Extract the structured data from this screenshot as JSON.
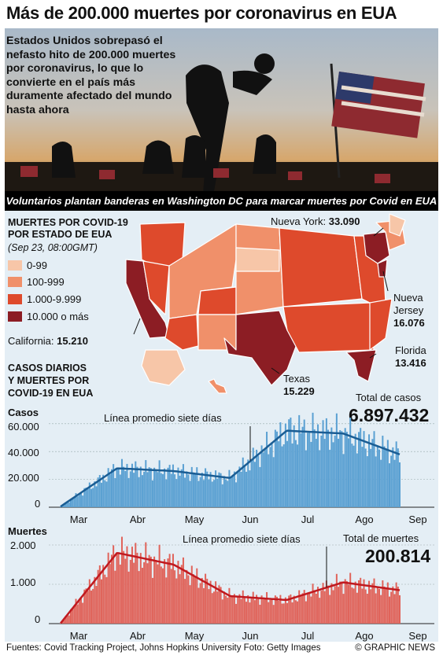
{
  "title": "Más de 200.000 muertes por coronavirus en EUA",
  "intro": "Estados Unidos sobrepasó el nefasto hito de 200.000 muertes por coronavirus, lo que lo convierte en el país más duramente afectado del mundo hasta ahora",
  "caption": "Voluntarios plantan banderas en Washington DC para marcar muertes por Covid en EUA",
  "map": {
    "title_l1": "Muertes por Covid-19",
    "title_l2": "por Estado de EUA",
    "date": "(Sep 23, 08:00GMT)",
    "legend": [
      {
        "label": "0-99",
        "color": "#f7c6a8"
      },
      {
        "label": "100-999",
        "color": "#f0906a"
      },
      {
        "label": "1.000-9.999",
        "color": "#de4a2c"
      },
      {
        "label": "10.000 o más",
        "color": "#8c1d24"
      }
    ],
    "ny_label": "Nueva York:",
    "ny_value": "33.090",
    "nj_l1": "Nueva",
    "nj_l2": "Jersey",
    "nj_value": "16.076",
    "ca_label": "California:",
    "ca_value": "15.210",
    "fl_label": "Florida",
    "fl_value": "13.416",
    "tx_label": "Texas",
    "tx_value": "15.229"
  },
  "section_title_l1": "Casos Diarios",
  "section_title_l2": "y Muertes por",
  "section_title_l3": "Covid-19 en EUA",
  "months": [
    "Mar",
    "Abr",
    "May",
    "Jun",
    "Jul",
    "Ago",
    "Sep"
  ],
  "cases": {
    "axis_title": "Casos",
    "ticks": [
      "60.000",
      "40.000",
      "20.000",
      "0"
    ],
    "avg_label": "Línea promedio siete días",
    "total_label": "Total de casos",
    "total_value": "6.897.432"
  },
  "deaths": {
    "axis_title": "Muertes",
    "ticks": [
      "2.000",
      "1.000",
      "0"
    ],
    "avg_label": "Línea promedio siete días",
    "total_label": "Total de muertes",
    "total_value": "200.814"
  },
  "sources": "Fuentes: Covid Tracking Project, Johns Hopkins University   Foto: Getty Images",
  "credit": "© GRAPHIC NEWS",
  "chart_data": [
    {
      "type": "bar",
      "title": "Casos",
      "x": [
        "Mar",
        "Abr",
        "May",
        "Jun",
        "Jul",
        "Ago",
        "Sep"
      ],
      "series": [
        {
          "values": [
            500,
            28000,
            26000,
            21000,
            55000,
            53000,
            38000
          ]
        }
      ],
      "ylim": [
        0,
        65000
      ],
      "annotation": "Línea promedio siete días",
      "total": "6.897.432"
    },
    {
      "type": "bar",
      "title": "Muertes",
      "x": [
        "Mar",
        "Abr",
        "May",
        "Jun",
        "Jul",
        "Ago",
        "Sep"
      ],
      "series": [
        {
          "values": [
            10,
            1800,
            1500,
            700,
            600,
            1050,
            850
          ]
        }
      ],
      "ylim": [
        0,
        2200
      ],
      "annotation": "Línea promedio siete días",
      "total": "200.814"
    }
  ]
}
